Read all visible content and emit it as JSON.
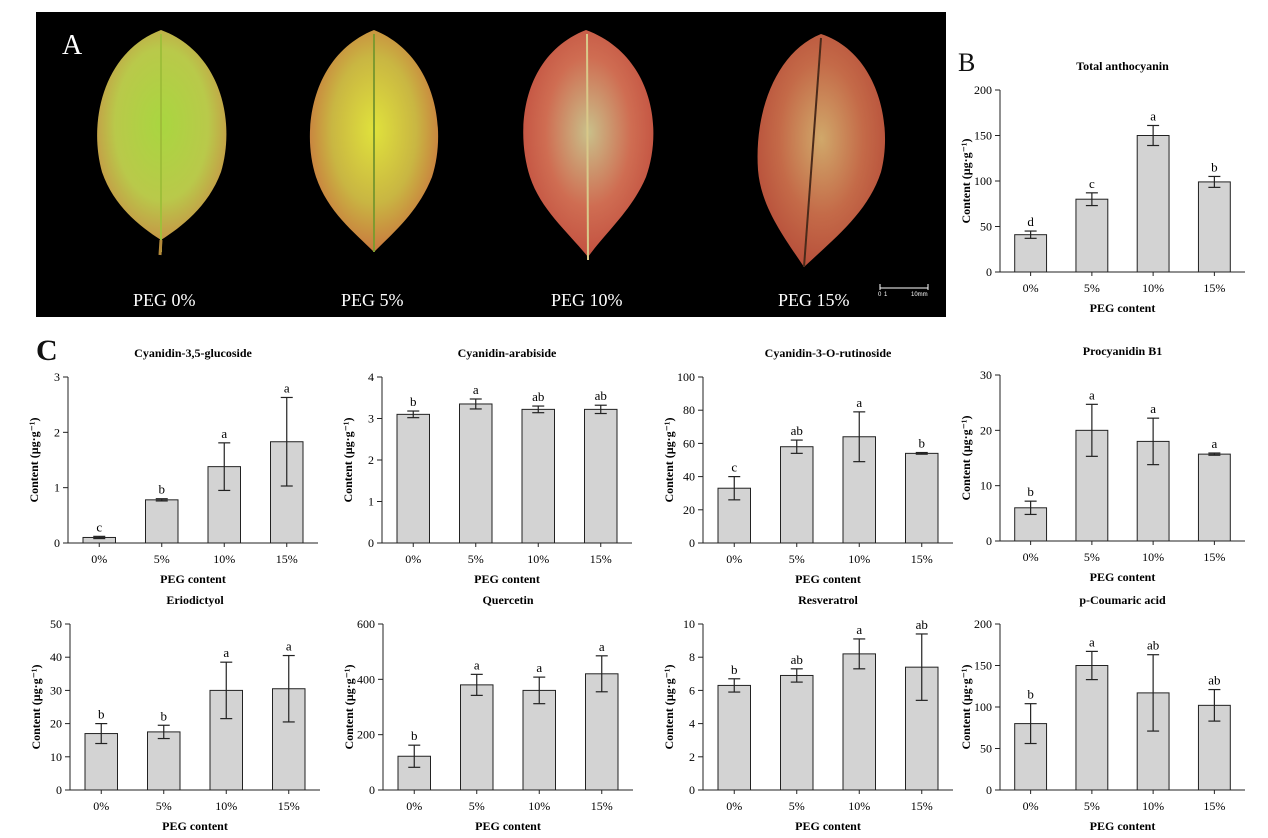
{
  "panels": {
    "a": "A",
    "b": "B",
    "c": "C"
  },
  "leaf_labels": [
    "PEG 0%",
    "PEG 5%",
    "PEG 10%",
    "PEG 15%"
  ],
  "scale_bar": {
    "tick0": "0",
    "tick1": "1",
    "label": "10mm"
  },
  "colors": {
    "bar_fill": "#d3d3d3",
    "bar_stroke": "#222222",
    "photo_bg": "#000000"
  },
  "chart_data": [
    {
      "type": "bar",
      "title": "Total anthocyanin",
      "categories": [
        "0%",
        "5%",
        "10%",
        "15%"
      ],
      "values": [
        41,
        80,
        150,
        99
      ],
      "errors": [
        4,
        7,
        11,
        6
      ],
      "letters": [
        "d",
        "c",
        "a",
        "b"
      ],
      "xlabel": "PEG content",
      "ylabel": "Content (μg·g⁻¹)",
      "ylim": [
        0,
        200
      ],
      "yticks": [
        0,
        50,
        100,
        150,
        200
      ]
    },
    {
      "type": "bar",
      "title": "Cyanidin-3,5-glucoside",
      "categories": [
        "0%",
        "5%",
        "10%",
        "15%"
      ],
      "values": [
        0.1,
        0.78,
        1.38,
        1.83
      ],
      "errors": [
        0.02,
        0.02,
        0.43,
        0.8
      ],
      "letters": [
        "c",
        "b",
        "a",
        "a"
      ],
      "xlabel": "PEG content",
      "ylabel": "Content (μg·g⁻¹)",
      "ylim": [
        0,
        3
      ],
      "yticks": [
        0,
        1,
        2,
        3
      ]
    },
    {
      "type": "bar",
      "title": "Cyanidin-arabiside",
      "categories": [
        "0%",
        "5%",
        "10%",
        "15%"
      ],
      "values": [
        3.1,
        3.35,
        3.22,
        3.22
      ],
      "errors": [
        0.08,
        0.12,
        0.08,
        0.1
      ],
      "letters": [
        "b",
        "a",
        "ab",
        "ab"
      ],
      "xlabel": "PEG content",
      "ylabel": "Content (μg·g⁻¹)",
      "ylim": [
        0,
        4
      ],
      "yticks": [
        0,
        1,
        2,
        3,
        4
      ]
    },
    {
      "type": "bar",
      "title": "Cyanidin-3-O-rutinoside",
      "categories": [
        "0%",
        "5%",
        "10%",
        "15%"
      ],
      "values": [
        33,
        58,
        64,
        54
      ],
      "errors": [
        7,
        4,
        15,
        0.5
      ],
      "letters": [
        "c",
        "ab",
        "a",
        "b"
      ],
      "xlabel": "PEG content",
      "ylabel": "Content (μg·g⁻¹)",
      "ylim": [
        0,
        100
      ],
      "yticks": [
        0,
        20,
        40,
        60,
        80,
        100
      ]
    },
    {
      "type": "bar",
      "title": "Procyanidin B1",
      "categories": [
        "0%",
        "5%",
        "10%",
        "15%"
      ],
      "values": [
        6,
        20,
        18,
        15.7
      ],
      "errors": [
        1.2,
        4.7,
        4.2,
        0.2
      ],
      "letters": [
        "b",
        "a",
        "a",
        "a"
      ],
      "xlabel": "PEG content",
      "ylabel": "Content (μg·g⁻¹)",
      "ylim": [
        0,
        30
      ],
      "yticks": [
        0,
        10,
        20,
        30
      ]
    },
    {
      "type": "bar",
      "title": "Eriodictyol",
      "categories": [
        "0%",
        "5%",
        "10%",
        "15%"
      ],
      "values": [
        17,
        17.5,
        30,
        30.5
      ],
      "errors": [
        3,
        2,
        8.5,
        10
      ],
      "letters": [
        "b",
        "b",
        "a",
        "a"
      ],
      "xlabel": "PEG content",
      "ylabel": "Content (μg·g⁻¹)",
      "ylim": [
        0,
        50
      ],
      "yticks": [
        0,
        10,
        20,
        30,
        40,
        50
      ]
    },
    {
      "type": "bar",
      "title": "Quercetin",
      "categories": [
        "0%",
        "5%",
        "10%",
        "15%"
      ],
      "values": [
        122,
        380,
        360,
        420
      ],
      "errors": [
        40,
        38,
        48,
        65
      ],
      "letters": [
        "b",
        "a",
        "a",
        "a"
      ],
      "xlabel": "PEG content",
      "ylabel": "Content (μg·g⁻¹)",
      "ylim": [
        0,
        600
      ],
      "yticks": [
        0,
        200,
        400,
        600
      ]
    },
    {
      "type": "bar",
      "title": "Resveratrol",
      "categories": [
        "0%",
        "5%",
        "10%",
        "15%"
      ],
      "values": [
        6.3,
        6.9,
        8.2,
        7.4
      ],
      "errors": [
        0.4,
        0.4,
        0.9,
        2.0
      ],
      "letters": [
        "b",
        "ab",
        "a",
        "ab"
      ],
      "xlabel": "PEG content",
      "ylabel": "Content (μg·g⁻¹)",
      "ylim": [
        0,
        10
      ],
      "yticks": [
        0,
        2,
        4,
        6,
        8,
        10
      ]
    },
    {
      "type": "bar",
      "title": "p-Coumaric acid",
      "categories": [
        "0%",
        "5%",
        "10%",
        "15%"
      ],
      "values": [
        80,
        150,
        117,
        102
      ],
      "errors": [
        24,
        17,
        46,
        19
      ],
      "letters": [
        "b",
        "a",
        "ab",
        "ab"
      ],
      "xlabel": "PEG content",
      "ylabel": "Content (μg·g⁻¹)",
      "ylim": [
        0,
        200
      ],
      "yticks": [
        0,
        50,
        100,
        150,
        200
      ]
    }
  ]
}
